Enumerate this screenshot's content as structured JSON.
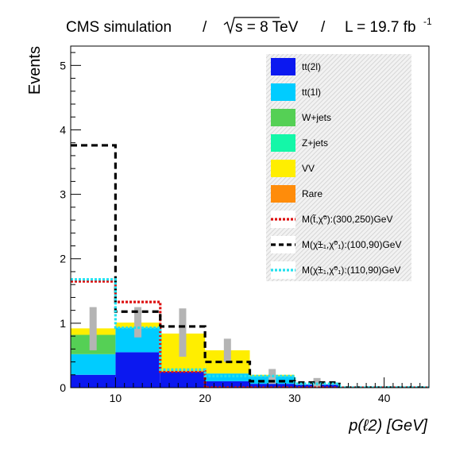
{
  "header": {
    "experiment": "CMS simulation",
    "sep": "/",
    "energy_prefix": "s = 8 TeV",
    "lumi_prefix": "L = 19.7 fb",
    "lumi_exp": "-1"
  },
  "chart_data": {
    "type": "bar",
    "stacked": true,
    "xlabel": "p(ℓ2)   [GeV]",
    "ylabel": "Events",
    "xlim": [
      5,
      45
    ],
    "ylim": [
      0,
      5.3
    ],
    "x_ticks": [
      10,
      20,
      30,
      40
    ],
    "y_ticks": [
      0,
      1,
      2,
      3,
      4,
      5
    ],
    "bin_edges": [
      5,
      10,
      15,
      20,
      25,
      30,
      35,
      40,
      45
    ],
    "background_stack": [
      {
        "name": "tt(2l)",
        "color": "#0b18f0",
        "values": [
          0.2,
          0.55,
          0.25,
          0.1,
          0.06,
          0.05,
          0.0,
          0.0
        ]
      },
      {
        "name": "tt(1l)",
        "color": "#00ccff",
        "values": [
          0.32,
          0.38,
          0.0,
          0.12,
          0.12,
          0.0,
          0.0,
          0.0
        ]
      },
      {
        "name": "W+jets",
        "color": "#55d055",
        "values": [
          0.3,
          0.0,
          0.0,
          0.0,
          0.0,
          0.0,
          0.0,
          0.0
        ]
      },
      {
        "name": "Z+jets",
        "color": "#14f7a8",
        "values": [
          0.0,
          0.0,
          0.0,
          0.0,
          0.0,
          0.0,
          0.0,
          0.0
        ]
      },
      {
        "name": "VV",
        "color": "#ffee00",
        "values": [
          0.1,
          0.08,
          0.59,
          0.36,
          0.02,
          0.0,
          0.0,
          0.0
        ]
      },
      {
        "name": "Rare",
        "color": "#ff8c0a",
        "values": [
          0.0,
          0.0,
          0.0,
          0.0,
          0.0,
          0.0,
          0.0,
          0.0
        ]
      }
    ],
    "uncertainty": {
      "color": "#b4b4b4",
      "centers": [
        7.5,
        12.5,
        17.5,
        22.5,
        27.5,
        32.5
      ],
      "low": [
        0.58,
        0.78,
        0.48,
        0.4,
        0.06,
        0.0
      ],
      "high": [
        1.25,
        1.25,
        1.23,
        0.76,
        0.29,
        0.15
      ]
    },
    "signals": [
      {
        "name": "M(t̃,χ̃⁰):(300,250)GeV",
        "color": "#dd1111",
        "dash": "dotted",
        "values": [
          1.65,
          1.33,
          0.25,
          0.0,
          0.0,
          0.0,
          0.0,
          0.0
        ]
      },
      {
        "name": "M(χ̃±₁,χ̃⁰₁):(100,90)GeV",
        "color": "#000000",
        "dash": "dashed",
        "values": [
          3.76,
          1.18,
          0.95,
          0.4,
          0.1,
          0.08,
          0.0,
          0.0
        ]
      },
      {
        "name": "M(χ̃±₁,χ̃⁰₁):(110,90)GeV",
        "color": "#22e0ee",
        "dash": "dotted",
        "values": [
          1.68,
          0.93,
          0.28,
          0.18,
          0.18,
          0.06,
          0.0,
          0.0
        ]
      }
    ],
    "legend_position": "top-right",
    "legend_background": "hatched-grey"
  }
}
